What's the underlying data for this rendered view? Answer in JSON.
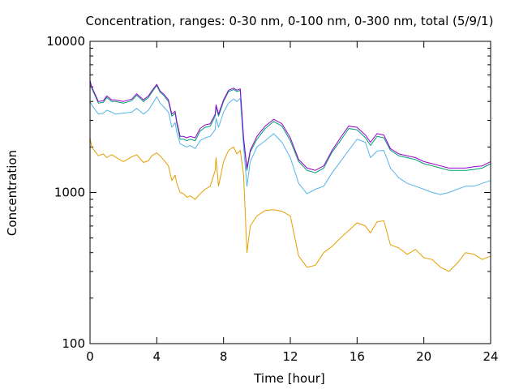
{
  "chart_data": {
    "type": "line",
    "title": "Concentration, ranges: 0-30 nm, 0-100 nm, 0-300 nm, total (5/9/1)",
    "xlabel": "Time [hour]",
    "ylabel": "Concentration",
    "xlim": [
      0,
      24
    ],
    "ylim": [
      100,
      10000
    ],
    "yscale": "log",
    "grid": false,
    "x_ticks": [
      0,
      4,
      8,
      12,
      16,
      20,
      24
    ],
    "y_ticks": [
      100,
      1000,
      10000
    ],
    "x_tick_labels": [
      "0",
      "4",
      "8",
      "12",
      "16",
      "20",
      "24"
    ],
    "y_tick_labels": [
      "100",
      "1000",
      "10000"
    ],
    "x": [
      0,
      0.1,
      0.5,
      0.8,
      1.0,
      1.3,
      1.5,
      2.0,
      2.5,
      2.8,
      3.2,
      3.5,
      3.7,
      4.0,
      4.2,
      4.4,
      4.7,
      4.9,
      5.1,
      5.2,
      5.4,
      5.6,
      5.8,
      6.0,
      6.3,
      6.6,
      6.9,
      7.2,
      7.5,
      7.55,
      7.7,
      8.0,
      8.3,
      8.6,
      8.8,
      9.0,
      9.2,
      9.4,
      9.6,
      10.0,
      10.5,
      11.0,
      11.5,
      12.0,
      12.5,
      13.0,
      13.5,
      14.0,
      14.5,
      15.0,
      15.5,
      16.0,
      16.5,
      16.8,
      17.2,
      17.6,
      18.0,
      18.5,
      19.0,
      19.5,
      20.0,
      20.5,
      21.0,
      21.5,
      22.0,
      22.5,
      23.0,
      23.5,
      24.0
    ],
    "colors": [
      "#e69f00",
      "#56b4e9",
      "#009e73",
      "#9400d3"
    ],
    "series": [
      {
        "values": [
          2300,
          2000,
          1750,
          1800,
          1700,
          1780,
          1720,
          1600,
          1720,
          1780,
          1580,
          1620,
          1750,
          1830,
          1750,
          1650,
          1500,
          1200,
          1300,
          1150,
          1000,
          980,
          930,
          950,
          900,
          980,
          1050,
          1100,
          1400,
          1700,
          1100,
          1600,
          1900,
          2000,
          1800,
          1900,
          1300,
          400,
          600,
          700,
          760,
          770,
          750,
          700,
          380,
          320,
          330,
          400,
          440,
          500,
          560,
          630,
          600,
          540,
          640,
          650,
          450,
          430,
          390,
          420,
          370,
          360,
          320,
          300,
          340,
          400,
          390,
          360,
          380
        ]
      },
      {
        "values": [
          4000,
          3800,
          3300,
          3350,
          3500,
          3400,
          3300,
          3350,
          3400,
          3600,
          3300,
          3500,
          3800,
          4300,
          3900,
          3700,
          3400,
          2700,
          2900,
          2500,
          2100,
          2050,
          2000,
          2050,
          1950,
          2200,
          2300,
          2350,
          2600,
          3100,
          2700,
          3400,
          3900,
          4150,
          4000,
          4200,
          2000,
          1100,
          1600,
          2000,
          2200,
          2450,
          2150,
          1700,
          1150,
          980,
          1050,
          1100,
          1350,
          1600,
          1900,
          2250,
          2150,
          1700,
          1880,
          1900,
          1450,
          1250,
          1150,
          1100,
          1050,
          1000,
          970,
          1000,
          1050,
          1100,
          1100,
          1150,
          1200
        ]
      },
      {
        "values": [
          5200,
          4900,
          3900,
          3950,
          4250,
          4000,
          4000,
          3900,
          4050,
          4400,
          4000,
          4250,
          4600,
          5100,
          4600,
          4400,
          4000,
          3200,
          3350,
          2850,
          2250,
          2250,
          2200,
          2250,
          2200,
          2550,
          2700,
          2750,
          3200,
          3700,
          3200,
          4000,
          4650,
          4800,
          4650,
          4750,
          2200,
          1400,
          1850,
          2250,
          2650,
          2950,
          2750,
          2200,
          1600,
          1400,
          1350,
          1450,
          1850,
          2200,
          2650,
          2600,
          2300,
          2050,
          2350,
          2300,
          1900,
          1750,
          1700,
          1650,
          1550,
          1500,
          1450,
          1400,
          1400,
          1400,
          1420,
          1450,
          1550
        ]
      },
      {
        "values": [
          5500,
          5000,
          4000,
          4050,
          4350,
          4100,
          4100,
          4000,
          4150,
          4500,
          4100,
          4350,
          4700,
          5200,
          4700,
          4500,
          4100,
          3300,
          3450,
          2950,
          2350,
          2350,
          2300,
          2350,
          2300,
          2650,
          2800,
          2850,
          3300,
          3800,
          3300,
          4100,
          4750,
          4900,
          4750,
          4850,
          2300,
          1450,
          1900,
          2350,
          2750,
          3050,
          2850,
          2300,
          1650,
          1450,
          1400,
          1500,
          1900,
          2300,
          2750,
          2700,
          2400,
          2150,
          2450,
          2400,
          1950,
          1800,
          1750,
          1700,
          1600,
          1550,
          1500,
          1450,
          1450,
          1450,
          1480,
          1500,
          1600
        ]
      }
    ]
  }
}
